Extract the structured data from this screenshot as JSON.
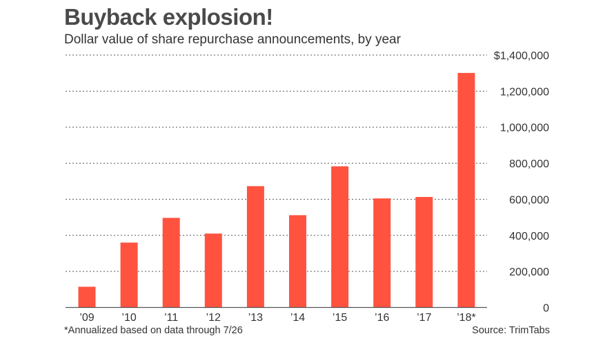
{
  "chart_data": {
    "type": "bar",
    "title": "Buyback explosion!",
    "subtitle": "Dollar value of share repurchase announcements, by year",
    "categories": [
      "’09",
      "’10",
      "’11",
      "’12",
      "’13",
      "’14",
      "’15",
      "’16",
      "’17",
      "’18*"
    ],
    "values": [
      115000,
      360000,
      497000,
      410000,
      673000,
      512000,
      783000,
      605000,
      613000,
      1301000
    ],
    "ylim": [
      0,
      1400000
    ],
    "yticks": [
      0,
      200000,
      400000,
      600000,
      800000,
      1000000,
      1200000,
      1400000
    ],
    "ytick_labels": [
      "0",
      "200,000",
      "400,000",
      "600,000",
      "800,000",
      "1,000,000",
      "1,200,000",
      "$1,400,000"
    ],
    "xlabel": "",
    "ylabel": "",
    "grid": true,
    "bar_color": "#ff5340",
    "footnote": "*Annualized based on data through 7/26",
    "source": "Source: TrimTabs"
  }
}
